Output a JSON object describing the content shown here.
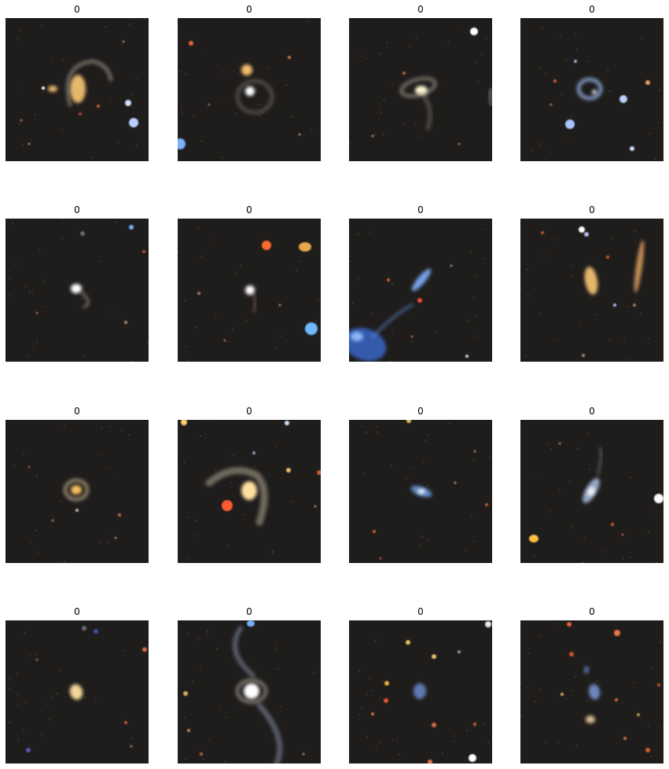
{
  "figure": {
    "background": "#ffffff",
    "image_background": "#1f1d1c",
    "panels": [
      {
        "label": "0",
        "scene": "curved-tidal-arm-galaxy-with-bright-stars"
      },
      {
        "label": "0",
        "scene": "galaxy-pair-with-bright-yellow-companion"
      },
      {
        "label": "0",
        "scene": "spiral-galaxy-with-faint-tidal-tail"
      },
      {
        "label": "0",
        "scene": "blue-hooked-spiral-with-blue-stars"
      },
      {
        "label": "0",
        "scene": "small-bright-spiral-galaxy"
      },
      {
        "label": "0",
        "scene": "compact-galaxy-with-red-and-blue-stars"
      },
      {
        "label": "0",
        "scene": "blue-elongated-galaxy-with-blue-star-cluster"
      },
      {
        "label": "0",
        "scene": "yellow-galaxy-and-edge-on-disk"
      },
      {
        "label": "0",
        "scene": "yellow-ring-galaxy"
      },
      {
        "label": "0",
        "scene": "interacting-galaxy-with-tidal-arm-and-red-star"
      },
      {
        "label": "0",
        "scene": "blue-elongated-galaxy"
      },
      {
        "label": "0",
        "scene": "blue-warped-disk-galaxy"
      },
      {
        "label": "0",
        "scene": "yellow-elliptical-in-noisy-field"
      },
      {
        "label": "0",
        "scene": "galaxy-with-long-curved-tidal-tail"
      },
      {
        "label": "0",
        "scene": "small-blue-galaxy-in-crowded-star-field"
      },
      {
        "label": "0",
        "scene": "blue-galaxy-pair-with-many-stars"
      }
    ]
  }
}
